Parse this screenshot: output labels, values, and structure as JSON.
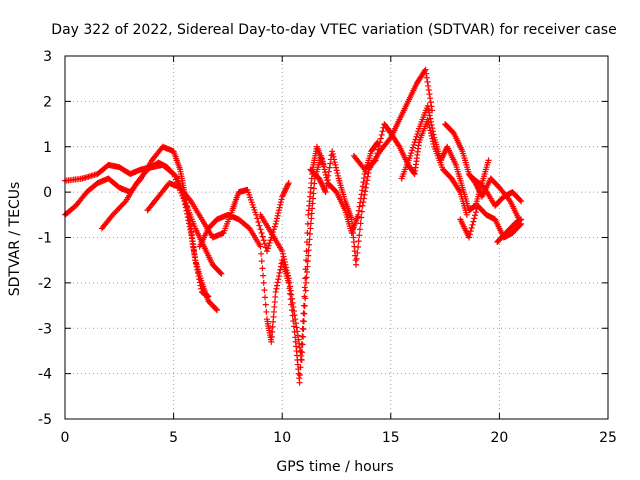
{
  "chart_data": {
    "type": "scatter",
    "title": "Day 322 of 2022, Sidereal Day-to-day VTEC variation (SDTVAR) for receiver case",
    "xlabel": "GPS time / hours",
    "ylabel": "SDTVAR / TECUs",
    "xlim": [
      0,
      25
    ],
    "ylim": [
      -5,
      3
    ],
    "x_ticks": [
      0,
      5,
      10,
      15,
      20,
      25
    ],
    "y_ticks": [
      -5,
      -4,
      -3,
      -2,
      -1,
      0,
      1,
      2,
      3
    ],
    "grid": true,
    "marker": "+",
    "marker_color": "#ff0000",
    "series": [
      {
        "points": [
          [
            0.0,
            0.25
          ],
          [
            0.8,
            0.3
          ],
          [
            1.5,
            0.4
          ],
          [
            2.0,
            0.6
          ],
          [
            2.5,
            0.55
          ],
          [
            3.0,
            0.4
          ],
          [
            3.5,
            0.5
          ],
          [
            4.0,
            0.55
          ],
          [
            4.5,
            0.6
          ],
          [
            5.0,
            0.4
          ],
          [
            5.5,
            -0.2
          ],
          [
            5.8,
            -0.9
          ],
          [
            6.0,
            -1.5
          ],
          [
            6.3,
            -2.0
          ],
          [
            6.6,
            -2.4
          ],
          [
            7.0,
            -2.6
          ]
        ]
      },
      {
        "points": [
          [
            0.0,
            -0.5
          ],
          [
            0.5,
            -0.3
          ],
          [
            1.0,
            0.0
          ],
          [
            1.5,
            0.2
          ],
          [
            2.0,
            0.3
          ],
          [
            2.5,
            0.1
          ],
          [
            3.0,
            0.0
          ],
          [
            3.5,
            0.3
          ],
          [
            4.0,
            0.7
          ],
          [
            4.5,
            1.0
          ],
          [
            5.0,
            0.9
          ],
          [
            5.3,
            0.5
          ],
          [
            5.5,
            0.0
          ],
          [
            5.8,
            -0.8
          ],
          [
            6.0,
            -1.5
          ],
          [
            6.3,
            -2.2
          ],
          [
            6.6,
            -2.3
          ]
        ]
      },
      {
        "points": [
          [
            1.7,
            -0.8
          ],
          [
            2.2,
            -0.5
          ],
          [
            2.8,
            -0.2
          ],
          [
            3.3,
            0.2
          ],
          [
            3.8,
            0.5
          ],
          [
            4.3,
            0.65
          ],
          [
            4.7,
            0.55
          ],
          [
            5.2,
            0.3
          ],
          [
            5.6,
            -0.3
          ],
          [
            6.0,
            -0.8
          ],
          [
            6.4,
            -1.2
          ],
          [
            6.8,
            -1.6
          ],
          [
            7.2,
            -1.8
          ]
        ]
      },
      {
        "points": [
          [
            3.8,
            -0.4
          ],
          [
            4.3,
            -0.1
          ],
          [
            4.8,
            0.2
          ],
          [
            5.3,
            0.1
          ],
          [
            5.8,
            -0.2
          ],
          [
            6.3,
            -0.6
          ],
          [
            6.8,
            -1.0
          ],
          [
            7.3,
            -0.9
          ],
          [
            7.7,
            -0.4
          ],
          [
            8.0,
            0.0
          ],
          [
            8.4,
            0.05
          ],
          [
            8.8,
            -0.5
          ],
          [
            9.3,
            -1.3
          ],
          [
            9.7,
            -0.7
          ],
          [
            10.0,
            -0.1
          ],
          [
            10.3,
            0.2
          ]
        ]
      },
      {
        "points": [
          [
            6.2,
            -1.2
          ],
          [
            6.6,
            -0.8
          ],
          [
            7.0,
            -0.6
          ],
          [
            7.5,
            -0.5
          ],
          [
            8.0,
            -0.6
          ],
          [
            8.5,
            -0.8
          ],
          [
            9.0,
            -1.2
          ],
          [
            9.3,
            -2.8
          ],
          [
            9.5,
            -3.3
          ],
          [
            9.7,
            -2.2
          ],
          [
            10.0,
            -1.5
          ],
          [
            10.3,
            -2.0
          ],
          [
            10.6,
            -3.2
          ],
          [
            10.8,
            -4.2
          ],
          [
            11.0,
            -2.5
          ],
          [
            11.2,
            -0.5
          ],
          [
            11.4,
            0.5
          ],
          [
            11.6,
            1.0
          ],
          [
            11.9,
            0.6
          ]
        ]
      },
      {
        "points": [
          [
            9.0,
            -0.5
          ],
          [
            9.5,
            -0.9
          ],
          [
            10.0,
            -1.3
          ],
          [
            10.3,
            -1.9
          ],
          [
            10.6,
            -2.8
          ],
          [
            10.9,
            -3.7
          ],
          [
            11.1,
            -2.0
          ],
          [
            11.3,
            -0.8
          ],
          [
            11.5,
            0.3
          ],
          [
            11.8,
            0.8
          ],
          [
            12.1,
            0.2
          ],
          [
            12.5,
            0.0
          ],
          [
            12.9,
            -0.4
          ],
          [
            13.2,
            -0.9
          ],
          [
            13.5,
            -0.5
          ],
          [
            13.8,
            0.4
          ],
          [
            14.1,
            0.9
          ],
          [
            14.4,
            1.1
          ]
        ]
      },
      {
        "points": [
          [
            11.3,
            0.5
          ],
          [
            11.7,
            0.3
          ],
          [
            12.0,
            0.0
          ],
          [
            12.3,
            0.9
          ],
          [
            12.6,
            0.3
          ],
          [
            12.9,
            -0.2
          ],
          [
            13.2,
            -0.6
          ],
          [
            13.4,
            -1.6
          ],
          [
            13.7,
            -0.3
          ],
          [
            14.0,
            0.5
          ],
          [
            14.5,
            0.9
          ],
          [
            15.0,
            1.2
          ],
          [
            15.4,
            1.6
          ],
          [
            15.8,
            2.0
          ],
          [
            16.2,
            2.4
          ],
          [
            16.6,
            2.7
          ],
          [
            16.9,
            1.8
          ]
        ]
      },
      {
        "points": [
          [
            13.3,
            0.8
          ],
          [
            13.8,
            0.5
          ],
          [
            14.3,
            0.7
          ],
          [
            14.7,
            1.5
          ],
          [
            15.0,
            1.3
          ],
          [
            15.4,
            1.0
          ],
          [
            15.8,
            0.6
          ],
          [
            16.1,
            0.4
          ],
          [
            16.3,
            1.1
          ],
          [
            16.7,
            1.6
          ],
          [
            17.0,
            1.0
          ],
          [
            17.4,
            0.5
          ],
          [
            17.8,
            0.3
          ],
          [
            18.2,
            0.0
          ],
          [
            18.5,
            -0.5
          ]
        ]
      },
      {
        "points": [
          [
            15.5,
            0.3
          ],
          [
            15.9,
            0.8
          ],
          [
            16.3,
            1.4
          ],
          [
            16.7,
            1.9
          ],
          [
            17.0,
            1.2
          ],
          [
            17.3,
            0.7
          ],
          [
            17.6,
            1.0
          ],
          [
            18.0,
            0.6
          ],
          [
            18.3,
            0.1
          ],
          [
            18.6,
            -0.4
          ],
          [
            18.9,
            -0.3
          ],
          [
            19.2,
            0.2
          ],
          [
            19.5,
            0.7
          ]
        ]
      },
      {
        "points": [
          [
            17.5,
            1.5
          ],
          [
            17.9,
            1.3
          ],
          [
            18.3,
            0.9
          ],
          [
            18.6,
            0.4
          ],
          [
            18.9,
            0.2
          ],
          [
            19.2,
            -0.1
          ],
          [
            19.6,
            0.3
          ],
          [
            20.0,
            0.1
          ],
          [
            20.5,
            -0.2
          ],
          [
            20.9,
            -0.6
          ]
        ]
      },
      {
        "points": [
          [
            18.2,
            -0.6
          ],
          [
            18.6,
            -1.0
          ],
          [
            19.0,
            -0.3
          ],
          [
            19.4,
            -0.5
          ],
          [
            19.8,
            -0.6
          ],
          [
            20.2,
            -1.0
          ],
          [
            20.6,
            -0.9
          ],
          [
            21.0,
            -0.7
          ]
        ]
      },
      {
        "points": [
          [
            18.8,
            0.3
          ],
          [
            19.3,
            0.1
          ],
          [
            19.8,
            -0.3
          ],
          [
            20.2,
            -0.1
          ],
          [
            20.6,
            0.0
          ],
          [
            21.0,
            -0.2
          ]
        ]
      },
      {
        "points": [
          [
            19.9,
            -1.1
          ],
          [
            20.3,
            -0.9
          ],
          [
            20.7,
            -0.7
          ],
          [
            21.0,
            -0.6
          ]
        ]
      }
    ]
  }
}
